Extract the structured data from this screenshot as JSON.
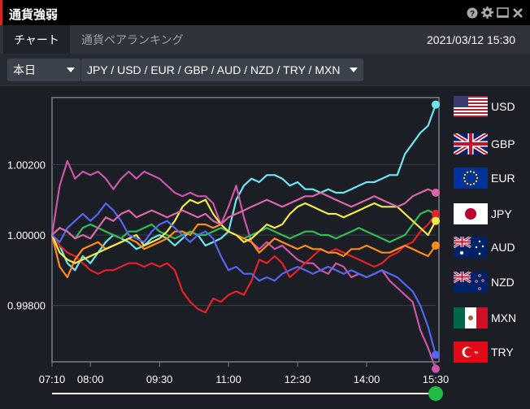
{
  "window": {
    "title": "通貨強弱",
    "accent": "#dd2222",
    "controls": [
      "help-icon",
      "gear-icon",
      "minimize-icon",
      "close-icon"
    ]
  },
  "tabs": [
    {
      "label": "チャート",
      "active": true
    },
    {
      "label": "通貨ペアランキング",
      "active": false
    }
  ],
  "datetime": "2021/03/12 15:30",
  "toolbar": {
    "period_select": "本日",
    "currency_select": "JPY / USD / EUR / GBP / AUD / NZD / TRY / MXN"
  },
  "legend": [
    {
      "code": "USD",
      "flag": "us-flag-icon"
    },
    {
      "code": "GBP",
      "flag": "uk-flag-icon"
    },
    {
      "code": "EUR",
      "flag": "eu-flag-icon"
    },
    {
      "code": "JPY",
      "flag": "jp-flag-icon"
    },
    {
      "code": "AUD",
      "flag": "au-flag-icon"
    },
    {
      "code": "NZD",
      "flag": "nz-flag-icon"
    },
    {
      "code": "MXN",
      "flag": "mx-flag-icon"
    },
    {
      "code": "TRY",
      "flag": "tr-flag-icon"
    }
  ],
  "slider": {
    "color": "#22bb44",
    "position": 1.0
  },
  "chart_data": {
    "type": "line",
    "title": "",
    "xlabel": "",
    "ylabel": "",
    "x_ticks": [
      "07:10",
      "08:00",
      "09:30",
      "11:00",
      "12:30",
      "14:00",
      "15:30"
    ],
    "x_tick_min": [
      430,
      480,
      570,
      660,
      750,
      840,
      930
    ],
    "x_range_min": [
      430,
      930
    ],
    "y_ticks": [
      "0.99800",
      "1.00000",
      "1.00200"
    ],
    "y_tick_values": [
      0.998,
      1.0,
      1.002
    ],
    "ylim": [
      0.9964,
      1.0039
    ],
    "grid": true,
    "series": [
      {
        "name": "USD",
        "color": "#6ee6f0",
        "x": [
          430,
          440,
          450,
          460,
          470,
          480,
          490,
          500,
          510,
          520,
          530,
          540,
          550,
          560,
          570,
          580,
          590,
          600,
          610,
          620,
          630,
          640,
          650,
          660,
          670,
          680,
          690,
          700,
          710,
          720,
          730,
          740,
          750,
          760,
          770,
          780,
          790,
          800,
          810,
          820,
          830,
          840,
          850,
          860,
          870,
          880,
          890,
          900,
          910,
          920,
          930
        ],
        "y": [
          1.0,
          0.9997,
          0.9992,
          0.999,
          0.9994,
          0.9992,
          0.9995,
          0.9998,
          1.0,
          0.9999,
          0.9998,
          0.9996,
          0.9997,
          0.9999,
          1.0,
          0.9999,
          0.9997,
          0.9999,
          1.0001,
          1.0,
          0.9997,
          0.9998,
          0.9999,
          1.0001,
          1.001,
          1.0014,
          1.0016,
          1.0015,
          1.0017,
          1.0017,
          1.0016,
          1.0014,
          1.0015,
          1.0013,
          1.0013,
          1.0012,
          1.0013,
          1.0012,
          1.0012,
          1.0013,
          1.0014,
          1.0015,
          1.0015,
          1.0016,
          1.0017,
          1.0017,
          1.0023,
          1.0026,
          1.0029,
          1.0031,
          1.0037
        ]
      },
      {
        "name": "GBP",
        "color": "#cc55aa",
        "x": [
          430,
          440,
          450,
          460,
          470,
          480,
          490,
          500,
          510,
          520,
          530,
          540,
          550,
          560,
          570,
          580,
          590,
          600,
          610,
          620,
          630,
          640,
          650,
          660,
          670,
          680,
          690,
          700,
          710,
          720,
          730,
          740,
          750,
          760,
          770,
          780,
          790,
          800,
          810,
          820,
          830,
          840,
          850,
          860,
          870,
          880,
          890,
          900,
          910,
          920,
          930
        ],
        "y": [
          1.0,
          1.0014,
          1.0021,
          1.0016,
          1.0018,
          1.0017,
          1.0018,
          1.0016,
          1.0013,
          1.0016,
          1.0018,
          1.0016,
          1.0018,
          1.0017,
          1.0016,
          1.0014,
          1.0012,
          1.0011,
          1.0012,
          1.0011,
          1.0011,
          1.0009,
          1.0003,
          1.0008,
          1.0014,
          1.0005,
          0.9998,
          0.9996,
          0.9998,
          0.9996,
          0.9997,
          0.9995,
          0.9993,
          0.9992,
          0.9992,
          0.999,
          0.9989,
          0.9992,
          0.9991,
          0.9988,
          0.9989,
          0.9988,
          0.9989,
          0.999,
          0.9987,
          0.9985,
          0.9983,
          0.9981,
          0.9973,
          0.9968,
          0.9962
        ]
      },
      {
        "name": "EUR",
        "color": "#33bb55",
        "x": [
          430,
          440,
          450,
          460,
          470,
          480,
          490,
          500,
          510,
          520,
          530,
          540,
          550,
          560,
          570,
          580,
          590,
          600,
          610,
          620,
          630,
          640,
          650,
          660,
          670,
          680,
          690,
          700,
          710,
          720,
          730,
          740,
          750,
          760,
          770,
          780,
          790,
          800,
          810,
          820,
          830,
          840,
          850,
          860,
          870,
          880,
          890,
          900,
          910,
          920,
          930
        ],
        "y": [
          1.0,
          1.0002,
          1.0001,
          0.9999,
          1.0002,
          1.0003,
          1.0002,
          1.0001,
          1.0,
          0.9999,
          1.0001,
          1.0001,
          1.0002,
          1.0003,
          1.0001,
          1.0,
          0.9999,
          1.0,
          1.0001,
          1.0,
          1.0,
          1.0001,
          1.0002,
          1.0001,
          1.0,
          0.9999,
          1.0,
          1.0001,
          1.0002,
          1.0001,
          1.0,
          0.9999,
          1.0,
          1.0001,
          1.0001,
          1.0,
          1.0,
          0.9999,
          1.0,
          1.0001,
          1.0002,
          1.0001,
          1.0,
          0.9999,
          0.9998,
          0.9999,
          1.0,
          1.0003,
          1.0006,
          1.0007,
          1.0006
        ]
      },
      {
        "name": "JPY",
        "color": "#e8202a",
        "x": [
          430,
          440,
          450,
          460,
          470,
          480,
          490,
          500,
          510,
          520,
          530,
          540,
          550,
          560,
          570,
          580,
          590,
          600,
          610,
          620,
          630,
          640,
          650,
          660,
          670,
          680,
          690,
          700,
          710,
          720,
          730,
          740,
          750,
          760,
          770,
          780,
          790,
          800,
          810,
          820,
          830,
          840,
          850,
          860,
          870,
          880,
          890,
          900,
          910,
          920,
          930
        ],
        "y": [
          1.0,
          0.9997,
          0.9995,
          0.9994,
          0.9992,
          0.999,
          0.9989,
          0.999,
          0.999,
          0.9991,
          0.9992,
          0.9992,
          0.9991,
          0.9992,
          0.9991,
          0.9992,
          0.999,
          0.9984,
          0.9981,
          0.9979,
          0.9978,
          0.9982,
          0.9981,
          0.9983,
          0.9984,
          0.9983,
          0.9987,
          0.9993,
          0.9992,
          0.9994,
          0.9992,
          0.9988,
          0.999,
          0.9992,
          0.9994,
          0.9996,
          0.9995,
          0.9996,
          0.9995,
          0.9994,
          0.9993,
          0.9992,
          0.9991,
          0.9992,
          0.9994,
          0.9995,
          0.9997,
          0.9998,
          1.0001,
          1.0003,
          1.0006
        ]
      },
      {
        "name": "AUD",
        "color": "#ff8c1a",
        "x": [
          430,
          440,
          450,
          460,
          470,
          480,
          490,
          500,
          510,
          520,
          530,
          540,
          550,
          560,
          570,
          580,
          590,
          600,
          610,
          620,
          630,
          640,
          650,
          660,
          670,
          680,
          690,
          700,
          710,
          720,
          730,
          740,
          750,
          760,
          770,
          780,
          790,
          800,
          810,
          820,
          830,
          840,
          850,
          860,
          870,
          880,
          890,
          900,
          910,
          920,
          930
        ],
        "y": [
          1.0,
          0.9991,
          0.9988,
          0.9993,
          0.9996,
          0.9997,
          0.9998,
          0.9996,
          0.9997,
          0.9998,
          0.9999,
          0.9998,
          0.9996,
          0.9997,
          0.9998,
          0.9999,
          1.0001,
          1.0001,
          1.0,
          1.0003,
          1.0003,
          1.0002,
          1.0003,
          1.0001,
          1.0,
          0.9999,
          0.9998,
          0.9995,
          0.9997,
          0.9999,
          0.9998,
          0.9997,
          0.9996,
          0.9997,
          0.9996,
          0.9996,
          0.9995,
          0.9995,
          0.9994,
          0.9996,
          0.9996,
          0.9997,
          0.9996,
          0.9995,
          0.9995,
          0.9996,
          0.9997,
          0.9996,
          0.9995,
          0.9994,
          0.9997
        ]
      },
      {
        "name": "NZD",
        "color": "#f2e94a",
        "x": [
          430,
          440,
          450,
          460,
          470,
          480,
          490,
          500,
          510,
          520,
          530,
          540,
          550,
          560,
          570,
          580,
          590,
          600,
          610,
          620,
          630,
          640,
          650,
          660,
          670,
          680,
          690,
          700,
          710,
          720,
          730,
          740,
          750,
          760,
          770,
          780,
          790,
          800,
          810,
          820,
          830,
          840,
          850,
          860,
          870,
          880,
          890,
          900,
          910,
          920,
          930
        ],
        "y": [
          1.0,
          0.9995,
          0.9993,
          0.9992,
          0.9993,
          0.9994,
          0.9995,
          0.9996,
          0.9997,
          0.9998,
          0.9999,
          1.0,
          0.9997,
          0.9998,
          0.9999,
          1.0001,
          1.0004,
          1.0008,
          1.001,
          1.0009,
          1.001,
          1.0006,
          1.0003,
          1.0001,
          1.0,
          0.9998,
          0.9999,
          1.0001,
          1.0003,
          1.0002,
          1.0003,
          1.0006,
          1.0008,
          1.0009,
          1.0008,
          1.0007,
          1.0006,
          1.0006,
          1.0005,
          1.0006,
          1.0007,
          1.0008,
          1.0009,
          1.0008,
          1.0008,
          1.0008,
          1.0006,
          1.0004,
          1.0002,
          1.0,
          1.0004
        ]
      },
      {
        "name": "MXN",
        "color": "#5566ee",
        "x": [
          430,
          440,
          450,
          460,
          470,
          480,
          490,
          500,
          510,
          520,
          530,
          540,
          550,
          560,
          570,
          580,
          590,
          600,
          610,
          620,
          630,
          640,
          650,
          660,
          670,
          680,
          690,
          700,
          710,
          720,
          730,
          740,
          750,
          760,
          770,
          780,
          790,
          800,
          810,
          820,
          830,
          840,
          850,
          860,
          870,
          880,
          890,
          900,
          910,
          920,
          930
        ],
        "y": [
          1.0,
          0.9998,
          1.0002,
          1.0004,
          1.0006,
          1.0004,
          1.0006,
          1.0009,
          1.0007,
          1.0004,
          1.0,
          0.9999,
          0.9998,
          1.0001,
          1.0003,
          1.0004,
          1.0002,
          1.0,
          0.9998,
          1.0,
          1.0001,
          0.9999,
          0.9994,
          0.999,
          0.9991,
          0.9989,
          0.9989,
          0.9987,
          0.9988,
          0.9987,
          0.9989,
          0.999,
          0.9991,
          0.999,
          0.9989,
          0.999,
          0.9991,
          0.999,
          0.9989,
          0.999,
          0.9989,
          0.9988,
          0.9989,
          0.999,
          0.9989,
          0.9988,
          0.9986,
          0.9984,
          0.998,
          0.9974,
          0.9966
        ]
      },
      {
        "name": "TRY",
        "color": "#dd66aa",
        "x": [
          430,
          440,
          450,
          460,
          470,
          480,
          490,
          500,
          510,
          520,
          530,
          540,
          550,
          560,
          570,
          580,
          590,
          600,
          610,
          620,
          630,
          640,
          650,
          660,
          670,
          680,
          690,
          700,
          710,
          720,
          730,
          740,
          750,
          760,
          770,
          780,
          790,
          800,
          810,
          820,
          830,
          840,
          850,
          860,
          870,
          880,
          890,
          900,
          910,
          920,
          930
        ],
        "y": [
          1.0,
          1.0002,
          1.0001,
          0.9999,
          1.0,
          0.9999,
          1.0002,
          1.0005,
          1.0004,
          1.0006,
          1.0007,
          1.0005,
          1.0006,
          1.0007,
          1.0006,
          1.0005,
          1.0006,
          1.0007,
          1.0006,
          1.0005,
          1.0006,
          1.0004,
          1.0003,
          1.0005,
          1.0006,
          1.0007,
          1.0008,
          1.0009,
          1.001,
          1.0009,
          1.0008,
          1.0009,
          1.001,
          1.0011,
          1.0011,
          1.0012,
          1.0011,
          1.001,
          1.0009,
          1.0008,
          1.0009,
          1.001,
          1.0011,
          1.001,
          1.0009,
          1.0008,
          1.0009,
          1.0011,
          1.0012,
          1.0013,
          1.0012
        ]
      }
    ]
  }
}
